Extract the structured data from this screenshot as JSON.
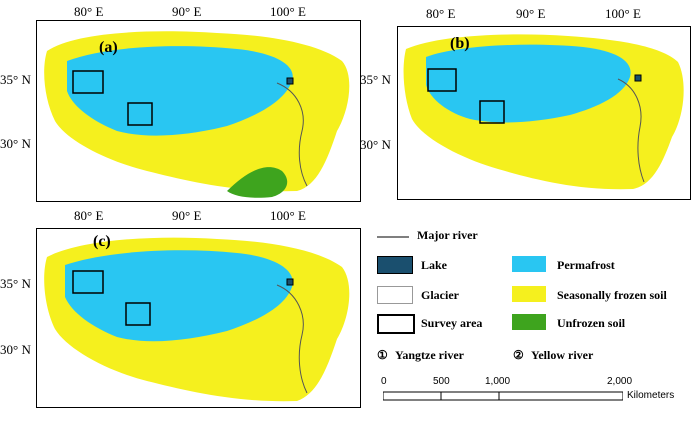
{
  "panels": [
    {
      "id": "a",
      "label": "(a)",
      "lon_ticks": [
        "80° E",
        "90° E",
        "100° E"
      ],
      "lat_ticks": [
        "35° N",
        "30° N"
      ]
    },
    {
      "id": "b",
      "label": "(b)",
      "lon_ticks": [
        "80° E",
        "90° E",
        "100° E"
      ],
      "lat_ticks": [
        "35° N",
        "30° N"
      ]
    },
    {
      "id": "c",
      "label": "(c)",
      "lon_ticks": [
        "80° E",
        "90° E",
        "100° E"
      ],
      "lat_ticks": [
        "35° N",
        "30° N"
      ]
    }
  ],
  "legend": {
    "major_river": "Major river",
    "lake": "Lake",
    "glacier": "Glacier",
    "survey_area": "Survey area",
    "permafrost": "Permafrost",
    "seasonal": "Seasonally frozen soil",
    "unfrozen": "Unfrozen soil",
    "yangtze": "Yangtze river",
    "yellow": "Yellow river",
    "yangtze_mark": "①",
    "yellow_mark": "②"
  },
  "scale": {
    "ticks": [
      "0",
      "500",
      "1,000",
      "2,000"
    ],
    "unit": "Kilometers"
  },
  "colors": {
    "permafrost": "#29c6f2",
    "seasonal": "#f5f01e",
    "unfrozen": "#3ea41e",
    "lake": "#1a4f6e",
    "glacier": "#ffffff",
    "river": "#555555"
  }
}
